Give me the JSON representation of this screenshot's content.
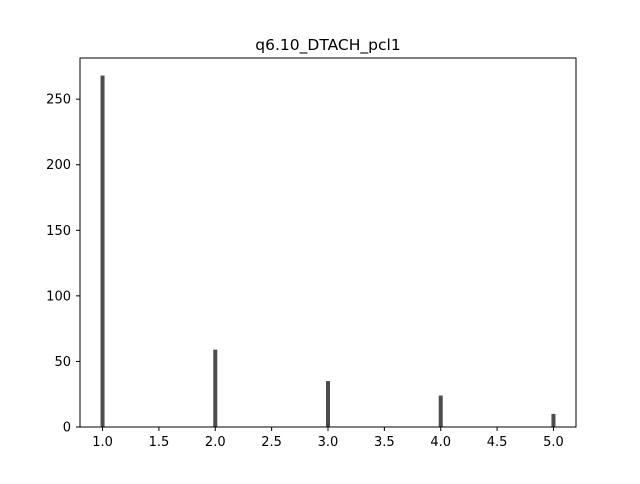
{
  "chart_data": {
    "type": "bar",
    "title": "q6.10_DTACH_pcl1",
    "xlabel": "",
    "ylabel": "",
    "x": [
      1.0,
      2.0,
      3.0,
      4.0,
      5.0
    ],
    "values": [
      268,
      59,
      35,
      24,
      10
    ],
    "xlim": [
      0.8,
      5.2
    ],
    "ylim": [
      0,
      281.4
    ],
    "xticks": [
      "1.0",
      "1.5",
      "2.0",
      "2.5",
      "3.0",
      "3.5",
      "4.0",
      "4.5",
      "5.0"
    ],
    "yticks": [
      "0",
      "50",
      "100",
      "150",
      "200",
      "250"
    ],
    "grid": false,
    "legend": "none",
    "bar_color": "#4d4d4d"
  }
}
